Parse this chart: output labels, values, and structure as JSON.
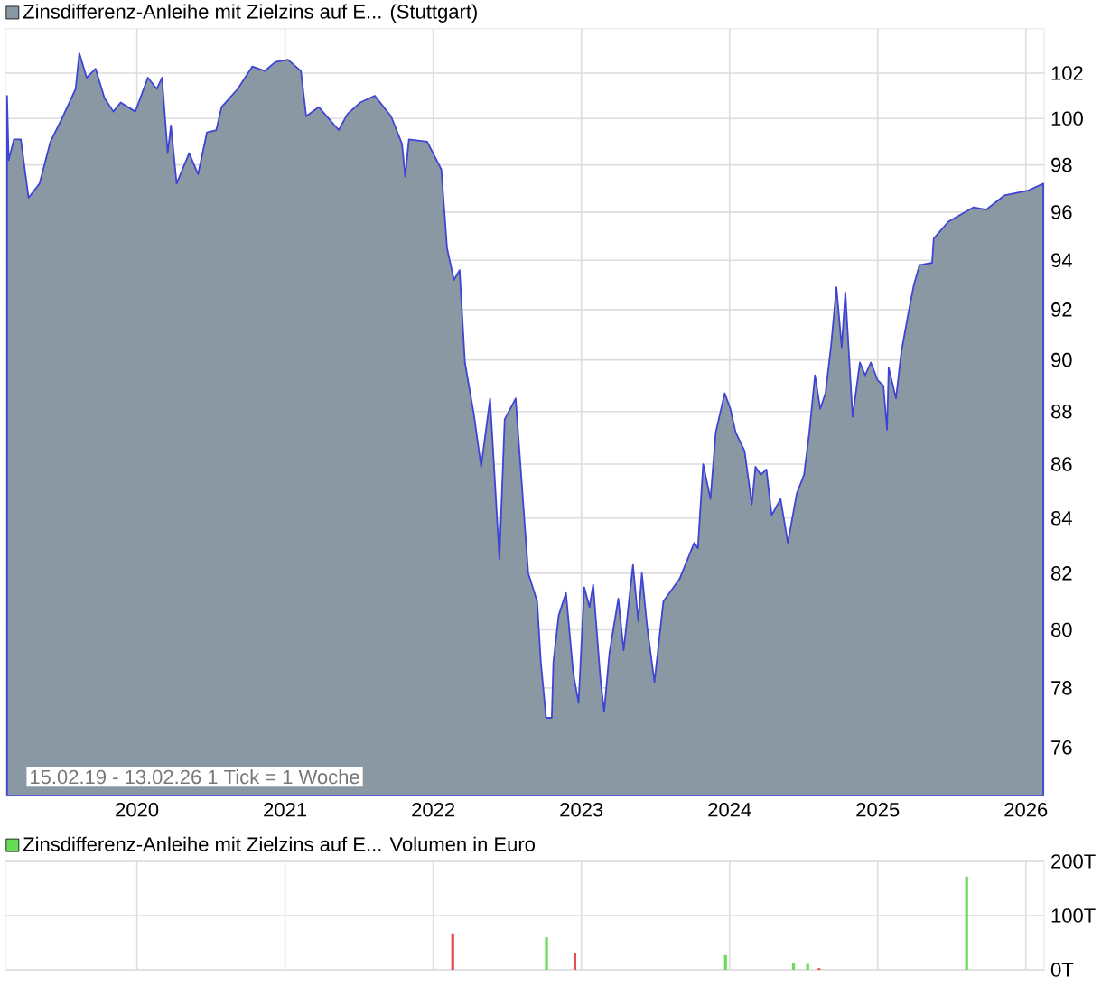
{
  "chart_data": [
    {
      "type": "area",
      "log": true,
      "grid": true,
      "legend": "top left",
      "annotations": [
        "15.02.19 - 13.02.26   1 Tick = 1 Woche"
      ],
      "xlim": [
        "2019-02-11",
        "2026-02-15"
      ],
      "xticks": [
        "2020",
        "2021",
        "2022",
        "2023",
        "2024",
        "2025",
        "2026"
      ],
      "ylim": [
        74.4,
        104.0
      ],
      "yticks": [
        76,
        78,
        80,
        82,
        84,
        86,
        88,
        90,
        92,
        94,
        96,
        98,
        100,
        102
      ],
      "x": [
        "2019-02-15",
        "2019-02-19",
        "2019-03-04",
        "2019-03-21",
        "2019-04-09",
        "2019-05-06",
        "2019-06-02",
        "2019-07-03",
        "2019-08-03",
        "2019-08-12",
        "2019-08-30",
        "2019-09-21",
        "2019-10-13",
        "2019-11-04",
        "2019-11-22",
        "2019-12-28",
        "2020-01-28",
        "2020-02-19",
        "2020-03-03",
        "2020-03-17",
        "2020-03-25",
        "2020-04-08",
        "2020-05-09",
        "2020-05-31",
        "2020-06-22",
        "2020-07-15",
        "2020-07-28",
        "2020-09-06",
        "2020-10-12",
        "2020-11-12",
        "2020-12-08",
        "2021-01-08",
        "2021-02-09",
        "2021-02-22",
        "2021-03-25",
        "2021-05-13",
        "2021-06-04",
        "2021-07-05",
        "2021-08-10",
        "2021-09-19",
        "2021-10-16",
        "2021-10-24",
        "2021-11-02",
        "2021-12-17",
        "2022-01-21",
        "2022-02-04",
        "2022-02-21",
        "2022-03-07",
        "2022-03-20",
        "2022-04-11",
        "2022-04-29",
        "2022-05-21",
        "2022-06-13",
        "2022-06-26",
        "2022-07-23",
        "2022-08-23",
        "2022-09-14",
        "2022-09-23",
        "2022-10-06",
        "2022-10-20",
        "2022-10-24",
        "2022-11-06",
        "2022-11-24",
        "2022-12-12",
        "2022-12-25",
        "2023-01-08",
        "2023-01-21",
        "2023-01-30",
        "2023-02-17",
        "2023-02-26",
        "2023-03-11",
        "2023-04-02",
        "2023-04-15",
        "2023-05-08",
        "2023-05-21",
        "2023-05-30",
        "2023-06-12",
        "2023-06-30",
        "2023-07-22",
        "2023-08-31",
        "2023-10-06",
        "2023-10-15",
        "2023-10-28",
        "2023-11-15",
        "2023-11-28",
        "2023-12-20",
        "2024-01-03",
        "2024-01-16",
        "2024-02-07",
        "2024-02-25",
        "2024-03-05",
        "2024-03-18",
        "2024-04-01",
        "2024-04-14",
        "2024-05-06",
        "2024-05-24",
        "2024-06-15",
        "2024-07-03",
        "2024-07-16",
        "2024-07-30",
        "2024-08-12",
        "2024-08-25",
        "2024-09-08",
        "2024-09-21",
        "2024-10-04",
        "2024-10-13",
        "2024-10-31",
        "2024-11-18",
        "2024-12-01",
        "2024-12-15",
        "2025-01-01",
        "2025-01-15",
        "2025-01-24",
        "2025-01-28",
        "2025-02-15",
        "2025-02-28",
        "2025-03-18",
        "2025-03-31",
        "2025-04-14",
        "2025-05-15",
        "2025-05-19",
        "2025-06-24",
        "2025-08-25",
        "2025-09-25",
        "2025-11-09",
        "2026-01-05",
        "2026-02-13"
      ],
      "series": [
        {
          "name": "Zinsdifferenz-Anleihe mit Zielzins auf E... (Stuttgart)",
          "color": "#8a98a3",
          "values": [
            101.0,
            98.2,
            99.1,
            99.1,
            96.6,
            97.2,
            99.0,
            100.1,
            101.3,
            102.9,
            101.8,
            102.2,
            100.9,
            100.3,
            100.7,
            100.3,
            101.8,
            101.3,
            101.8,
            98.5,
            99.7,
            97.2,
            98.5,
            97.6,
            99.4,
            99.5,
            100.5,
            101.3,
            102.3,
            102.1,
            102.5,
            102.6,
            102.1,
            100.1,
            100.5,
            99.5,
            100.2,
            100.7,
            101.0,
            100.1,
            98.9,
            97.5,
            99.1,
            99.0,
            97.8,
            94.5,
            93.2,
            93.6,
            89.9,
            87.9,
            85.9,
            88.5,
            82.5,
            87.7,
            88.5,
            82.0,
            81.0,
            78.9,
            77.0,
            77.0,
            78.9,
            80.5,
            81.3,
            78.5,
            77.5,
            81.5,
            80.8,
            81.6,
            78.3,
            77.2,
            79.2,
            81.1,
            79.3,
            82.3,
            80.3,
            82.0,
            80.1,
            78.2,
            81.0,
            81.8,
            83.1,
            82.9,
            86.0,
            84.7,
            87.2,
            88.7,
            88.1,
            87.2,
            86.5,
            84.5,
            85.9,
            85.6,
            85.8,
            84.1,
            84.7,
            83.1,
            84.9,
            85.6,
            87.2,
            89.4,
            88.1,
            88.7,
            90.6,
            92.9,
            90.5,
            92.7,
            87.8,
            89.9,
            89.4,
            89.9,
            89.2,
            89.0,
            87.3,
            89.7,
            88.5,
            90.3,
            91.9,
            93.0,
            93.8,
            93.9,
            94.9,
            95.6,
            96.2,
            96.1,
            96.7,
            96.9,
            97.2
          ]
        }
      ]
    },
    {
      "type": "bar",
      "grid": true,
      "legend": "top left",
      "tick_labels": "y",
      "xlim": [
        "2019-02-11",
        "2026-02-15"
      ],
      "xticks": [
        "2020",
        "2021",
        "2022",
        "2023",
        "2024",
        "2025",
        "2026"
      ],
      "ylim": [
        0,
        200
      ],
      "yticks": [
        {
          "value": 0,
          "label": "0T"
        },
        {
          "value": 100,
          "label": "100T"
        },
        {
          "value": 200,
          "label": "200T"
        }
      ],
      "x": [
        "2022-02-18",
        "2022-10-07",
        "2022-12-16",
        "2023-12-22",
        "2024-06-07",
        "2024-07-12",
        "2024-08-09",
        "2025-08-08"
      ],
      "series": [
        {
          "name": "Zinsdifferenz-Anleihe mit Zielzins auf E... Volumen in Euro",
          "color": "#66dd55",
          "values": [
            67,
            60,
            31,
            27,
            13,
            11,
            3,
            172
          ],
          "colors": [
            "#e05050",
            "#66dd55",
            "#e05050",
            "#66dd55",
            "#66dd55",
            "#66dd55",
            "#e05050",
            "#66dd55"
          ]
        }
      ]
    }
  ]
}
